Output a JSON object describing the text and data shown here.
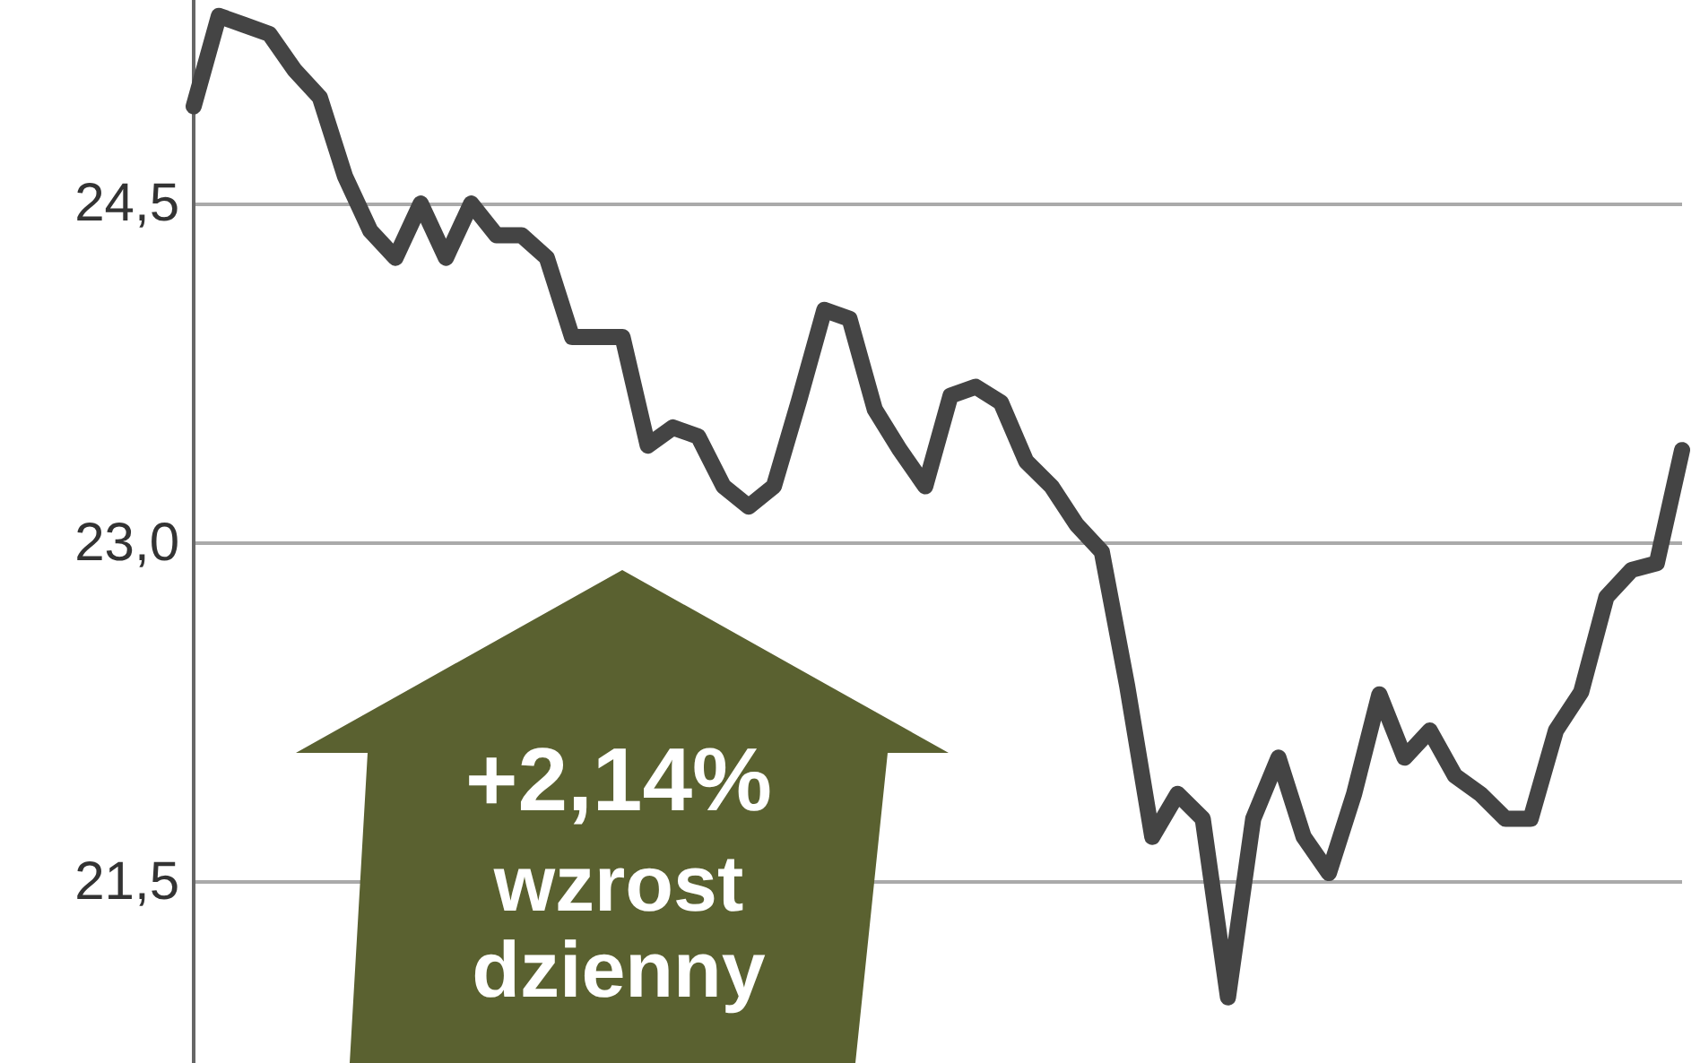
{
  "chart_data": {
    "type": "line",
    "categories": [
      null,
      null,
      null,
      null,
      null,
      null,
      null,
      null,
      null,
      null,
      null,
      null,
      null,
      null,
      null,
      null,
      null,
      null,
      null,
      null,
      null,
      null,
      null,
      null,
      null,
      null,
      null,
      null,
      null,
      null,
      null,
      null,
      null,
      null,
      null,
      null,
      null,
      null,
      null,
      null,
      null,
      null,
      null,
      null,
      null,
      null,
      null,
      null,
      null,
      null,
      null,
      null,
      null,
      null,
      null,
      null,
      null,
      null,
      null,
      null
    ],
    "series": [
      {
        "color": "#444444",
        "values": [
          24.93,
          25.33,
          25.29,
          25.25,
          25.09,
          24.97,
          24.62,
          24.38,
          24.26,
          24.5,
          24.26,
          24.5,
          24.36,
          24.36,
          24.26,
          23.91,
          23.91,
          23.91,
          23.43,
          23.51,
          23.47,
          23.25,
          23.16,
          23.25,
          23.63,
          24.03,
          23.99,
          23.59,
          23.41,
          23.25,
          23.65,
          23.69,
          23.62,
          23.36,
          23.25,
          23.08,
          22.96,
          22.37,
          21.7,
          21.89,
          21.78,
          20.99,
          21.78,
          22.05,
          21.7,
          21.54,
          21.89,
          22.33,
          22.05,
          22.17,
          21.97,
          21.89,
          21.78,
          21.78,
          22.17,
          22.34,
          22.76,
          22.88,
          22.91,
          23.41
        ]
      }
    ],
    "ylim": [
      20.7,
      25.4
    ],
    "yticks": [
      {
        "value": 21.5,
        "label": "21,5"
      },
      {
        "value": 23,
        "label": "23,0"
      },
      {
        "value": 24.5,
        "label": "24,5"
      }
    ],
    "grid": "y",
    "line_style": "solid",
    "annotations": [
      "+2,14%",
      "wzrost dzienny"
    ]
  }
}
